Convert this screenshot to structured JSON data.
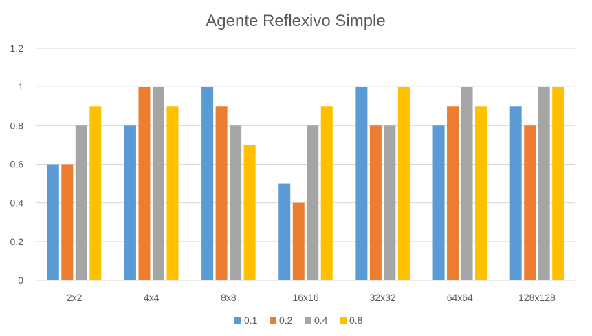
{
  "chart_data": {
    "type": "bar",
    "title": "Agente Reflexivo Simple",
    "xlabel": "",
    "ylabel": "",
    "categories": [
      "2x2",
      "4x4",
      "8x8",
      "16x16",
      "32x32",
      "64x64",
      "128x128"
    ],
    "series": [
      {
        "name": "0.1",
        "color": "#5b9bd5",
        "values": [
          0.6,
          0.8,
          1.0,
          0.5,
          1.0,
          0.8,
          0.9
        ]
      },
      {
        "name": "0.2",
        "color": "#ed7d31",
        "values": [
          0.6,
          1.0,
          0.9,
          0.4,
          0.8,
          0.9,
          0.8
        ]
      },
      {
        "name": "0.4",
        "color": "#a5a5a5",
        "values": [
          0.8,
          1.0,
          0.8,
          0.8,
          0.8,
          1.0,
          1.0
        ]
      },
      {
        "name": "0.8",
        "color": "#ffc000",
        "values": [
          0.9,
          0.9,
          0.7,
          0.9,
          1.0,
          0.9,
          1.0
        ]
      }
    ],
    "ylim": [
      0,
      1.2
    ],
    "yticks": [
      "0",
      "0.2",
      "0.4",
      "0.6",
      "0.8",
      "1",
      "1.2"
    ],
    "grid": true,
    "legend_position": "bottom"
  }
}
